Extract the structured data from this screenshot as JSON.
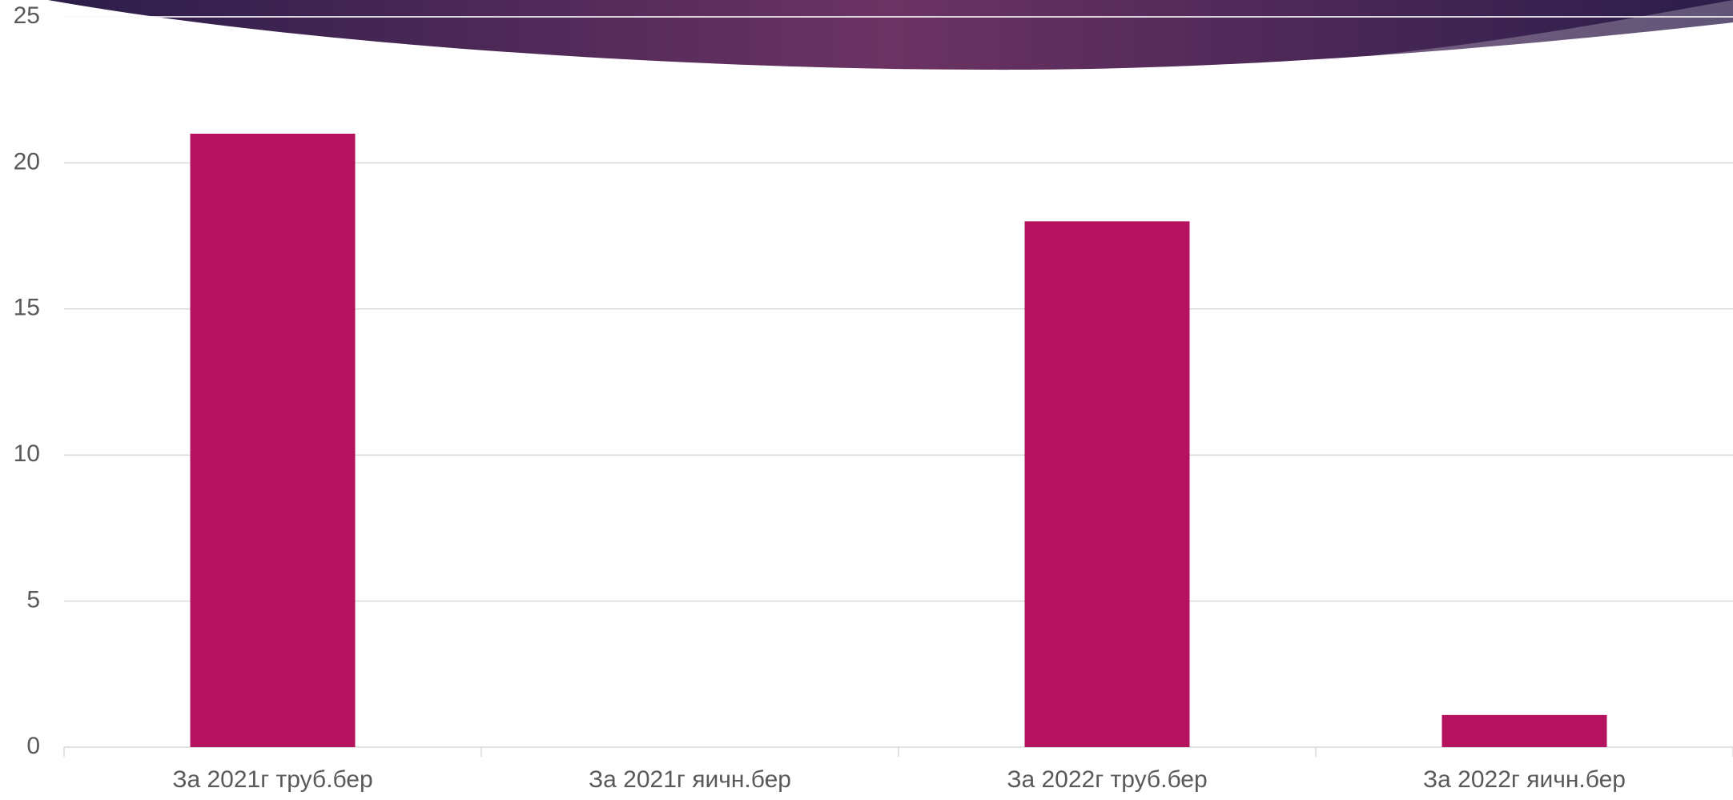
{
  "chart_data": {
    "type": "bar",
    "categories": [
      "За 2021г труб.бер",
      "За 2021г яичн.бер",
      "За 2022г труб.бер",
      "За 2022г яичн.бер"
    ],
    "values": [
      21,
      0,
      18,
      1.1
    ],
    "color": "#b5135f",
    "ylim": [
      0,
      25
    ],
    "yticks": [
      0,
      5,
      10,
      15,
      20,
      25
    ],
    "grid": true
  }
}
